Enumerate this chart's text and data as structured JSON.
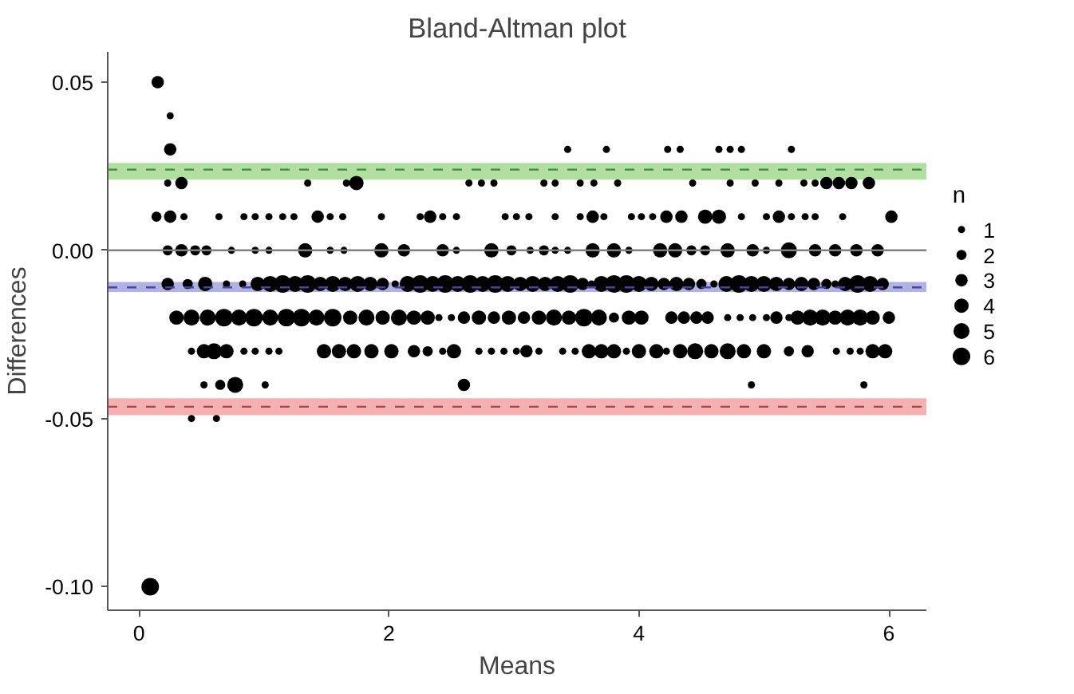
{
  "chart_data": {
    "type": "bubble",
    "title": "Bland-Altman plot",
    "xlabel": "Means",
    "ylabel": "Differences",
    "legend_title": "n",
    "grid": false,
    "marker": "circle",
    "xlim": [
      -0.25,
      6.3
    ],
    "xticks": [
      0,
      2,
      4,
      6
    ],
    "ylim": [
      -0.107,
      0.059
    ],
    "yticks": [
      {
        "value": 0.05,
        "label": "0.05"
      },
      {
        "value": 0,
        "label": "0.00"
      },
      {
        "value": -0.05,
        "label": "-0.05"
      },
      {
        "value": -0.1,
        "label": "-0.10"
      }
    ],
    "size_legend": [
      1,
      2,
      3,
      4,
      5,
      6
    ],
    "bands": [
      {
        "axis": "y",
        "from": 0.021,
        "to": 0.026,
        "color": "#a8dc98"
      },
      {
        "axis": "y",
        "from": -0.0124,
        "to": -0.0094,
        "color": "#aaa8e0"
      },
      {
        "axis": "y",
        "from": -0.049,
        "to": -0.044,
        "color": "#f4a8a8"
      }
    ],
    "ref_lines": [
      {
        "axis": "y",
        "value": 0,
        "color": "#808080",
        "line_style": "solid"
      },
      {
        "axis": "y",
        "value": 0.024,
        "color": "#3c8c3c",
        "line_style": "dashed"
      },
      {
        "axis": "y",
        "value": -0.011,
        "color": "#4646a0",
        "line_style": "dashed"
      },
      {
        "axis": "y",
        "value": -0.0465,
        "color": "#a04646",
        "line_style": "dashed"
      }
    ],
    "series": [
      {
        "color": "#000000",
        "x": [
          0.15,
          0.25,
          0.25,
          3.43,
          3.74,
          4.23,
          4.33,
          4.64,
          4.73,
          4.82,
          5.22,
          0.23,
          0.34,
          1.35,
          1.66,
          1.74,
          2.64,
          2.74,
          2.84,
          3.24,
          3.33,
          3.53,
          3.64,
          3.83,
          4.43,
          4.73,
          4.93,
          5.12,
          5.32,
          5.41,
          5.5,
          5.6,
          5.7,
          5.84,
          0.14,
          0.25,
          0.36,
          0.64,
          0.84,
          0.93,
          1.04,
          1.15,
          1.24,
          1.43,
          1.53,
          1.63,
          1.94,
          2.25,
          2.33,
          2.43,
          2.54,
          2.93,
          3.02,
          3.12,
          3.33,
          3.53,
          3.63,
          3.72,
          3.94,
          4.02,
          4.11,
          4.22,
          4.34,
          4.53,
          4.64,
          4.82,
          5.02,
          5.12,
          5.22,
          5.33,
          5.41,
          5.63,
          6.02,
          0.23,
          0.34,
          0.45,
          0.54,
          0.74,
          0.93,
          1.04,
          1.33,
          1.53,
          1.64,
          1.94,
          2.12,
          2.43,
          2.54,
          2.82,
          2.98,
          3.13,
          3.24,
          3.33,
          3.43,
          3.63,
          3.8,
          3.92,
          4.17,
          4.29,
          4.42,
          4.53,
          4.71,
          4.91,
          5.02,
          5.2,
          5.41,
          5.57,
          5.74,
          5.91,
          0.23,
          0.39,
          0.53,
          0.7,
          0.83,
          0.95,
          1.05,
          1.15,
          1.25,
          1.35,
          1.45,
          1.55,
          1.65,
          1.75,
          1.85,
          1.95,
          2.05,
          2.15,
          2.25,
          2.35,
          2.45,
          2.55,
          2.65,
          2.75,
          2.85,
          2.95,
          3.05,
          3.15,
          3.25,
          3.35,
          3.45,
          3.55,
          3.62,
          3.7,
          3.8,
          3.9,
          4.0,
          4.1,
          4.2,
          4.3,
          4.4,
          4.5,
          4.6,
          4.7,
          4.8,
          4.9,
          5.0,
          5.1,
          5.2,
          5.3,
          5.4,
          5.5,
          5.57,
          5.65,
          5.75,
          5.85,
          5.95,
          0.3,
          0.42,
          0.55,
          0.68,
          0.8,
          0.92,
          1.05,
          1.18,
          1.3,
          1.42,
          1.55,
          1.69,
          1.82,
          1.95,
          2.08,
          2.2,
          2.31,
          2.4,
          2.5,
          2.6,
          2.72,
          2.84,
          2.96,
          3.08,
          3.2,
          3.32,
          3.44,
          3.56,
          3.68,
          3.8,
          3.92,
          4.02,
          4.26,
          4.36,
          4.46,
          4.55,
          4.71,
          4.81,
          4.91,
          5.02,
          5.1,
          5.2,
          5.27,
          5.37,
          5.47,
          5.57,
          5.67,
          5.77,
          5.87,
          6.0,
          0.42,
          0.52,
          0.6,
          0.7,
          0.84,
          0.93,
          1.04,
          1.12,
          1.48,
          1.6,
          1.72,
          1.86,
          2.02,
          2.2,
          2.31,
          2.43,
          2.52,
          2.72,
          2.82,
          2.92,
          3.02,
          3.1,
          3.2,
          3.39,
          3.49,
          3.6,
          3.7,
          3.8,
          3.9,
          4.0,
          4.14,
          4.22,
          4.33,
          4.45,
          4.58,
          4.71,
          4.84,
          5.0,
          5.2,
          5.35,
          5.58,
          5.69,
          5.77,
          5.87,
          5.97,
          0.52,
          0.65,
          0.77,
          1.01,
          2.6,
          4.9,
          5.8,
          0.42,
          0.62,
          0.09
        ],
        "values": [
          0.05,
          0.04,
          0.03,
          0.03,
          0.03,
          0.03,
          0.03,
          0.03,
          0.03,
          0.03,
          0.03,
          0.02,
          0.02,
          0.02,
          0.02,
          0.02,
          0.02,
          0.02,
          0.02,
          0.02,
          0.02,
          0.02,
          0.02,
          0.02,
          0.02,
          0.02,
          0.02,
          0.02,
          0.02,
          0.02,
          0.02,
          0.02,
          0.02,
          0.02,
          0.01,
          0.01,
          0.01,
          0.01,
          0.01,
          0.01,
          0.01,
          0.01,
          0.01,
          0.01,
          0.01,
          0.01,
          0.01,
          0.01,
          0.01,
          0.01,
          0.01,
          0.01,
          0.01,
          0.01,
          0.01,
          0.01,
          0.01,
          0.01,
          0.01,
          0.01,
          0.01,
          0.01,
          0.01,
          0.01,
          0.01,
          0.01,
          0.01,
          0.01,
          0.01,
          0.01,
          0.01,
          0.01,
          0.01,
          0,
          0,
          0,
          0,
          0,
          0,
          0,
          0,
          0,
          0,
          0,
          0,
          0,
          0,
          0,
          0,
          0,
          0,
          0,
          0,
          0,
          0,
          0,
          0,
          0,
          0,
          0,
          0,
          0,
          0,
          0,
          0,
          0,
          0,
          0,
          -0.01,
          -0.01,
          -0.01,
          -0.01,
          -0.01,
          -0.01,
          -0.01,
          -0.01,
          -0.01,
          -0.01,
          -0.01,
          -0.01,
          -0.01,
          -0.01,
          -0.01,
          -0.01,
          -0.01,
          -0.01,
          -0.01,
          -0.01,
          -0.01,
          -0.01,
          -0.01,
          -0.01,
          -0.01,
          -0.01,
          -0.01,
          -0.01,
          -0.01,
          -0.01,
          -0.01,
          -0.01,
          -0.01,
          -0.01,
          -0.01,
          -0.01,
          -0.01,
          -0.01,
          -0.01,
          -0.01,
          -0.01,
          -0.01,
          -0.01,
          -0.01,
          -0.01,
          -0.01,
          -0.01,
          -0.01,
          -0.01,
          -0.01,
          -0.01,
          -0.01,
          -0.01,
          -0.01,
          -0.01,
          -0.01,
          -0.01,
          -0.02,
          -0.02,
          -0.02,
          -0.02,
          -0.02,
          -0.02,
          -0.02,
          -0.02,
          -0.02,
          -0.02,
          -0.02,
          -0.02,
          -0.02,
          -0.02,
          -0.02,
          -0.02,
          -0.02,
          -0.02,
          -0.02,
          -0.02,
          -0.02,
          -0.02,
          -0.02,
          -0.02,
          -0.02,
          -0.02,
          -0.02,
          -0.02,
          -0.02,
          -0.02,
          -0.02,
          -0.02,
          -0.02,
          -0.02,
          -0.02,
          -0.02,
          -0.02,
          -0.02,
          -0.02,
          -0.02,
          -0.02,
          -0.02,
          -0.02,
          -0.02,
          -0.02,
          -0.02,
          -0.02,
          -0.02,
          -0.02,
          -0.02,
          -0.03,
          -0.03,
          -0.03,
          -0.03,
          -0.03,
          -0.03,
          -0.03,
          -0.03,
          -0.03,
          -0.03,
          -0.03,
          -0.03,
          -0.03,
          -0.03,
          -0.03,
          -0.03,
          -0.03,
          -0.03,
          -0.03,
          -0.03,
          -0.03,
          -0.03,
          -0.03,
          -0.03,
          -0.03,
          -0.03,
          -0.03,
          -0.03,
          -0.03,
          -0.03,
          -0.03,
          -0.03,
          -0.03,
          -0.03,
          -0.03,
          -0.03,
          -0.03,
          -0.03,
          -0.03,
          -0.03,
          -0.03,
          -0.03,
          -0.03,
          -0.03,
          -0.03,
          -0.04,
          -0.04,
          -0.04,
          -0.04,
          -0.04,
          -0.04,
          -0.04,
          -0.05,
          -0.05,
          -0.1
        ],
        "sizes": [
          3,
          1,
          3,
          1,
          1,
          1,
          1,
          1,
          1,
          1,
          1,
          1,
          3,
          1,
          1,
          4,
          1,
          1,
          1,
          1,
          1,
          1,
          1,
          1,
          1,
          1,
          1,
          1,
          1,
          1,
          3,
          3,
          3,
          3,
          2,
          3,
          1,
          1,
          1,
          1,
          1,
          1,
          1,
          3,
          1,
          1,
          1,
          1,
          3,
          1,
          1,
          1,
          1,
          1,
          1,
          1,
          3,
          1,
          1,
          1,
          1,
          3,
          3,
          4,
          4,
          1,
          1,
          3,
          1,
          1,
          1,
          1,
          3,
          2,
          3,
          2,
          2,
          1,
          1,
          1,
          4,
          1,
          1,
          4,
          3,
          3,
          1,
          4,
          2,
          1,
          2,
          1,
          1,
          4,
          4,
          1,
          4,
          4,
          2,
          2,
          4,
          3,
          1,
          5,
          3,
          3,
          3,
          3,
          3,
          2,
          4,
          1,
          1,
          4,
          5,
          6,
          5,
          6,
          4,
          5,
          4,
          5,
          4,
          3,
          1,
          5,
          6,
          5,
          6,
          5,
          6,
          5,
          6,
          5,
          4,
          5,
          4,
          5,
          6,
          3,
          1,
          5,
          6,
          6,
          5,
          4,
          3,
          4,
          3,
          2,
          1,
          5,
          6,
          5,
          5,
          4,
          3,
          4,
          3,
          2,
          1,
          4,
          6,
          5,
          3,
          4,
          5,
          5,
          6,
          5,
          6,
          5,
          6,
          6,
          5,
          6,
          4,
          5,
          4,
          5,
          4,
          4,
          1,
          1,
          3,
          4,
          3,
          4,
          3,
          4,
          5,
          4,
          6,
          5,
          2,
          4,
          4,
          3,
          3,
          3,
          3,
          1,
          1,
          1,
          1,
          3,
          1,
          4,
          5,
          5,
          4,
          5,
          5,
          4,
          3,
          1,
          4,
          5,
          4,
          1,
          1,
          1,
          1,
          4,
          4,
          4,
          4,
          4,
          3,
          2,
          1,
          4,
          1,
          1,
          1,
          1,
          3,
          1,
          1,
          1,
          4,
          4,
          4,
          1,
          4,
          4,
          1,
          4,
          5,
          4,
          5,
          4,
          4,
          2,
          3,
          1,
          1,
          1,
          4,
          4,
          1,
          2,
          5,
          1,
          3,
          1,
          1,
          1,
          1,
          6
        ]
      }
    ]
  }
}
